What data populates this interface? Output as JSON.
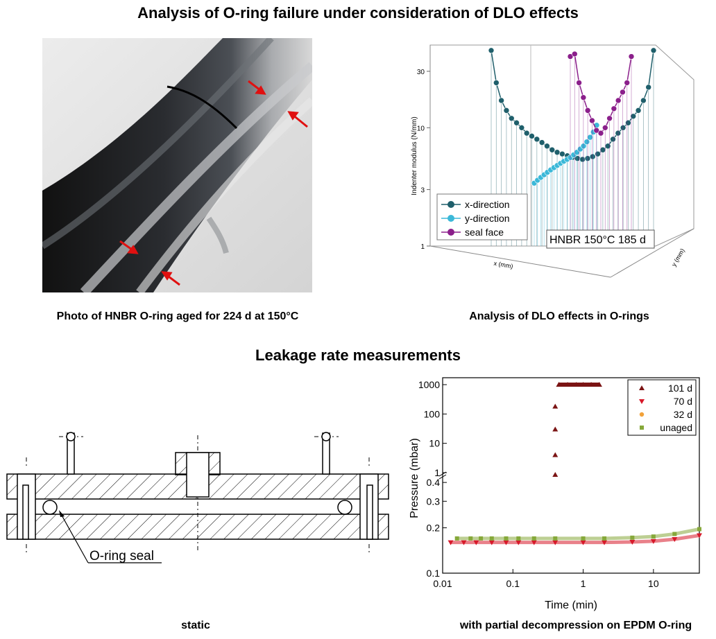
{
  "titles": {
    "main": "Analysis of O-ring failure under consideration of DLO effects",
    "leakage": "Leakage rate measurements"
  },
  "captions": {
    "photo": "Photo of HNBR O-ring aged for 224 d at 150°C",
    "dlo": "Analysis of DLO effects in O-rings",
    "static": "static",
    "decompression": "with partial decompression on EPDM O-ring"
  },
  "colors": {
    "x_direction": "#1f5f6b",
    "y_direction": "#3bb8d8",
    "seal_face": "#8b1f8b",
    "d101": "#7b1414",
    "d70": "#d7192a",
    "d32": "#f2a23a",
    "unaged": "#86a83a"
  },
  "diagram": {
    "seal_label": "O-ring seal"
  },
  "chart_data": [
    {
      "type": "scatter",
      "projection": "3d",
      "ylabel": "Indenter modulus (N/mm)",
      "xlabel": "x (mm)",
      "zlabel": "y (mm)",
      "yscale": "log",
      "ylim": [
        1,
        50
      ],
      "yticks": [
        "1",
        "3",
        "10",
        "30"
      ],
      "annotation": "HNBR 150°C 185 d",
      "legend_position": "bottom-left",
      "series": [
        {
          "name": "x-direction",
          "values": [
            45,
            24,
            17,
            14,
            12,
            11,
            10,
            9,
            8.5,
            8,
            7.5,
            7,
            6.5,
            6.2,
            6,
            5.8,
            5.6,
            5.5,
            5.4,
            5.5,
            5.7,
            6,
            6.5,
            7,
            8,
            9,
            10,
            11,
            12.5,
            14,
            17,
            22,
            45
          ]
        },
        {
          "name": "y-direction",
          "values": [
            3.4,
            3.6,
            3.8,
            4,
            4.2,
            4.4,
            4.6,
            4.8,
            5,
            5.2,
            5.4,
            5.6,
            5.9,
            6.2,
            6.6,
            7,
            7.6,
            8.3,
            9.2,
            10.5
          ]
        },
        {
          "name": "seal face",
          "values": [
            40,
            42,
            24,
            18,
            14,
            11.5,
            9.5,
            9,
            10,
            12,
            14.5,
            17,
            20,
            24,
            40
          ]
        }
      ]
    },
    {
      "type": "scatter",
      "xlabel": "Time (min)",
      "ylabel": "Pressure (mbar)",
      "xscale": "log",
      "xlim": [
        0.01,
        45
      ],
      "xticks": [
        "0.01",
        "0.1",
        "1",
        "10"
      ],
      "ylim": [
        0.1,
        1000
      ],
      "yticks_upper": [
        "1",
        "10",
        "100",
        "1000"
      ],
      "yticks_lower": [
        "0.1",
        "0.2",
        "0.3",
        "0.4"
      ],
      "axis_break": "between 0.4 and 1",
      "legend_position": "top-right",
      "series": [
        {
          "name": "101 d",
          "x": [
            0.4,
            0.4,
            0.4,
            0.4,
            0.45,
            0.6,
            0.8,
            1.0,
            1.3,
            1.7
          ],
          "y": [
            0.45,
            4,
            30,
            180,
            1000,
            1000,
            1000,
            1000,
            1000,
            1000
          ]
        },
        {
          "name": "70 d",
          "x": [
            0.013,
            0.02,
            0.03,
            0.05,
            0.08,
            0.12,
            0.2,
            0.4,
            1,
            2,
            5,
            10,
            20,
            45
          ],
          "y": [
            0.16,
            0.16,
            0.16,
            0.16,
            0.16,
            0.16,
            0.16,
            0.16,
            0.16,
            0.16,
            0.161,
            0.163,
            0.168,
            0.178
          ]
        },
        {
          "name": "32 d",
          "x": [],
          "y": []
        },
        {
          "name": "unaged",
          "x": [
            0.016,
            0.025,
            0.035,
            0.05,
            0.08,
            0.12,
            0.2,
            0.4,
            1,
            2,
            5,
            10,
            20,
            45
          ],
          "y": [
            0.17,
            0.17,
            0.17,
            0.17,
            0.17,
            0.17,
            0.17,
            0.17,
            0.17,
            0.17,
            0.172,
            0.175,
            0.182,
            0.196
          ]
        }
      ]
    }
  ]
}
